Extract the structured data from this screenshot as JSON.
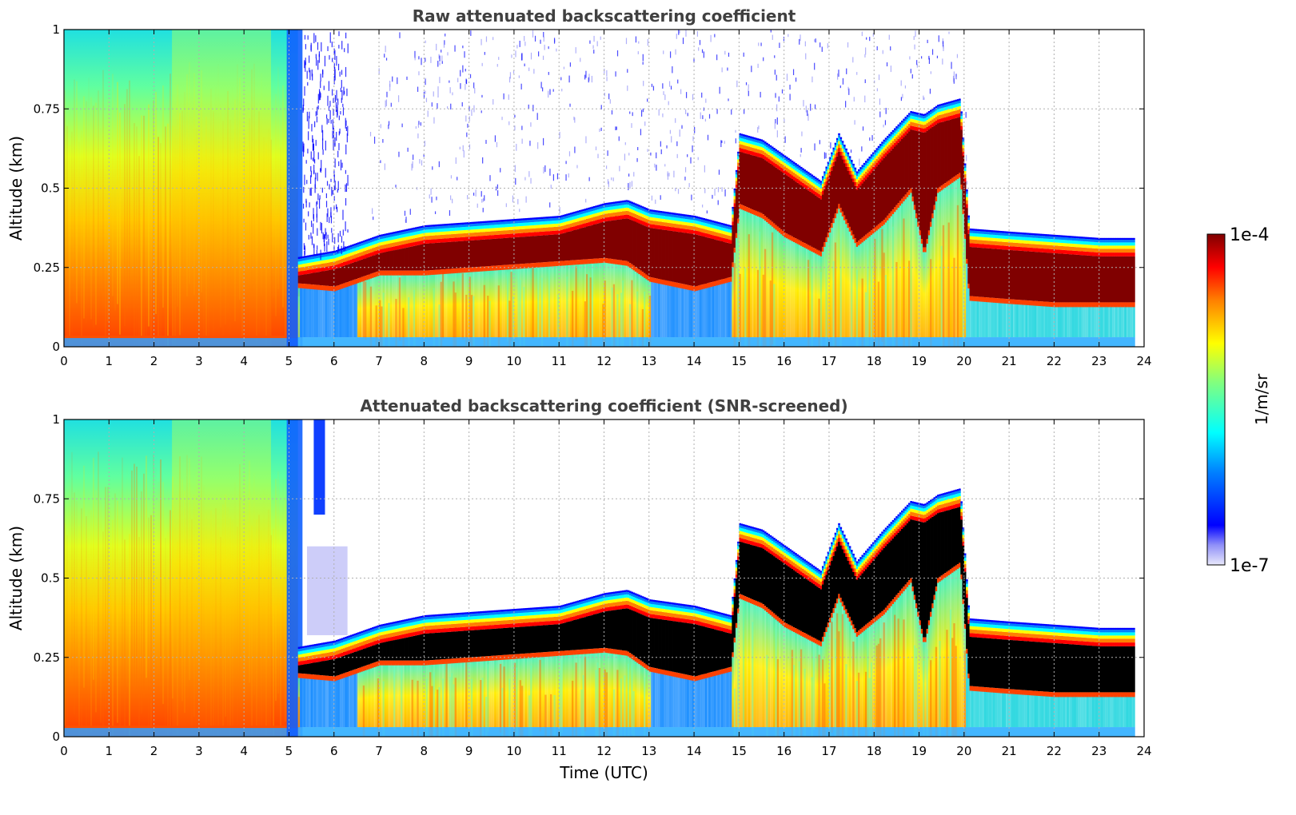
{
  "chart_data": [
    {
      "type": "heatmap",
      "title": "Raw attenuated backscattering coefficient",
      "ylabel": "Altitude (km)",
      "xlabel": "",
      "xlim": [
        0,
        24
      ],
      "ylim": [
        0,
        1
      ],
      "x_ticks": [
        "0",
        "1",
        "2",
        "3",
        "4",
        "5",
        "6",
        "7",
        "8",
        "9",
        "10",
        "11",
        "12",
        "13",
        "14",
        "15",
        "16",
        "17",
        "18",
        "19",
        "20",
        "21",
        "22",
        "23",
        "24"
      ],
      "y_ticks": [
        "0",
        "0.25",
        "0.5",
        "0.75",
        "1"
      ],
      "grid": true,
      "screened": false,
      "cloud_layer": {
        "time_utc": [
          5.2,
          6,
          7,
          8,
          9,
          10,
          11,
          12,
          12.5,
          13,
          14,
          14.8,
          15,
          15.5,
          16,
          16.8,
          17.2,
          17.6,
          18.2,
          18.8,
          19.1,
          19.4,
          19.9,
          20.1,
          21,
          22,
          23,
          23.8
        ],
        "cloud_base_km": [
          0.2,
          0.19,
          0.24,
          0.24,
          0.25,
          0.26,
          0.27,
          0.28,
          0.27,
          0.22,
          0.19,
          0.22,
          0.45,
          0.42,
          0.36,
          0.3,
          0.45,
          0.33,
          0.4,
          0.5,
          0.3,
          0.5,
          0.55,
          0.16,
          0.15,
          0.14,
          0.14,
          0.14
        ],
        "cloud_top_km": [
          0.28,
          0.3,
          0.35,
          0.38,
          0.39,
          0.4,
          0.41,
          0.45,
          0.46,
          0.43,
          0.41,
          0.38,
          0.67,
          0.65,
          0.6,
          0.52,
          0.67,
          0.55,
          0.65,
          0.74,
          0.73,
          0.76,
          0.78,
          0.37,
          0.36,
          0.35,
          0.34,
          0.34
        ]
      },
      "boundary_layer_aerosol": {
        "time_utc": [
          0,
          5.2
        ],
        "top_km": 1.0
      },
      "sparse_noise": {
        "time_utc": [
          6.8,
          20.1
        ],
        "altitude_km": [
          0.4,
          1.0
        ]
      }
    },
    {
      "type": "heatmap",
      "title": "Attenuated backscattering coefficient (SNR-screened)",
      "ylabel": "Altitude (km)",
      "xlabel": "Time (UTC)",
      "xlim": [
        0,
        24
      ],
      "ylim": [
        0,
        1
      ],
      "x_ticks": [
        "0",
        "1",
        "2",
        "3",
        "4",
        "5",
        "6",
        "7",
        "8",
        "9",
        "10",
        "11",
        "12",
        "13",
        "14",
        "15",
        "16",
        "17",
        "18",
        "19",
        "20",
        "21",
        "22",
        "23",
        "24"
      ],
      "y_ticks": [
        "0",
        "0.25",
        "0.5",
        "0.75",
        "1"
      ],
      "grid": true,
      "screened": true,
      "cloud_layer": {
        "time_utc": [
          5.2,
          6,
          7,
          8,
          9,
          10,
          11,
          12,
          12.5,
          13,
          14,
          14.8,
          15,
          15.5,
          16,
          16.8,
          17.2,
          17.6,
          18.2,
          18.8,
          19.1,
          19.4,
          19.9,
          20.1,
          21,
          22,
          23,
          23.8
        ],
        "cloud_base_km": [
          0.2,
          0.19,
          0.24,
          0.24,
          0.25,
          0.26,
          0.27,
          0.28,
          0.27,
          0.22,
          0.19,
          0.22,
          0.45,
          0.42,
          0.36,
          0.3,
          0.45,
          0.33,
          0.4,
          0.5,
          0.3,
          0.5,
          0.55,
          0.16,
          0.15,
          0.14,
          0.14,
          0.14
        ],
        "cloud_top_km": [
          0.28,
          0.3,
          0.35,
          0.38,
          0.39,
          0.4,
          0.41,
          0.45,
          0.46,
          0.43,
          0.41,
          0.38,
          0.67,
          0.65,
          0.6,
          0.52,
          0.67,
          0.55,
          0.65,
          0.74,
          0.73,
          0.76,
          0.78,
          0.37,
          0.36,
          0.35,
          0.34,
          0.34
        ]
      },
      "boundary_layer_aerosol": {
        "time_utc": [
          0,
          5.2
        ],
        "top_km": 1.0
      },
      "masked_color": "#000000"
    }
  ],
  "colorbar": {
    "label": "1/m/sr",
    "max_label": "1e-4",
    "min_label": "1e-7",
    "scale": "log",
    "range": [
      1e-07,
      0.0001
    ],
    "colormap": [
      "#e8e8fb",
      "#0000ff",
      "#0080ff",
      "#00ffff",
      "#80ff80",
      "#ffff00",
      "#ff8000",
      "#ff0000",
      "#800000"
    ]
  }
}
